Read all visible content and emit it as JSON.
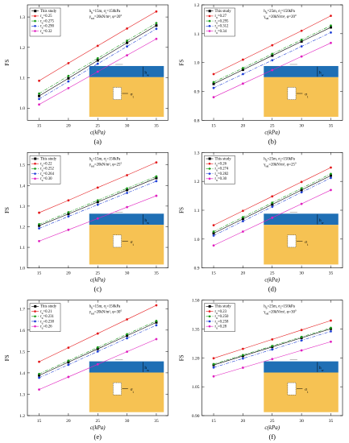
{
  "chart_data": [
    {
      "type": "line",
      "panel_label": "(a)",
      "xlabel": "c(kPa)",
      "ylabel": "FS",
      "x": [
        15,
        20,
        25,
        30,
        35
      ],
      "xlim": [
        13,
        37
      ],
      "xticks": [
        15,
        20,
        25,
        30,
        35
      ],
      "ylim": [
        0.96,
        1.34
      ],
      "yticks": [
        1.0,
        1.1,
        1.2,
        1.3
      ],
      "ytick_labels": [
        "1.0",
        "1.1",
        "1.2",
        "1.3"
      ],
      "note_lines": [
        "h_b=15m, σ_t=150kPa",
        "γ_sat=20kN/m³, φ=20°"
      ],
      "inset": {
        "h_label": "h_w",
        "sigma_label": "σ_t"
      },
      "series": [
        {
          "name": "This study",
          "color": "#000000",
          "style": "solid",
          "marker": "square",
          "values": [
            1.04,
            1.098,
            1.157,
            1.215,
            1.272
          ]
        },
        {
          "name": "r_u=0.25",
          "color": "#e41a1c",
          "style": "solid",
          "marker": "circle",
          "values": [
            1.09,
            1.148,
            1.205,
            1.262,
            1.318
          ]
        },
        {
          "name": "r_u=0.275",
          "color": "#1a9b1a",
          "style": "dashdot",
          "marker": "circle",
          "values": [
            1.048,
            1.106,
            1.164,
            1.222,
            1.28
          ]
        },
        {
          "name": "r_u=0.290",
          "color": "#1f3fd6",
          "style": "dashdot",
          "marker": "circle",
          "values": [
            1.03,
            1.088,
            1.146,
            1.203,
            1.261
          ]
        },
        {
          "name": "r_u=0.32",
          "color": "#e020c0",
          "style": "solid",
          "marker": "circle",
          "values": [
            1.012,
            1.066,
            1.12,
            1.174,
            1.228
          ]
        }
      ]
    },
    {
      "type": "line",
      "panel_label": "(b)",
      "xlabel": "c(kPa)",
      "ylabel": "FS",
      "x": [
        15,
        20,
        25,
        30,
        35
      ],
      "xlim": [
        13,
        37
      ],
      "xticks": [
        15,
        20,
        25,
        30,
        35
      ],
      "ylim": [
        0.8,
        1.2
      ],
      "yticks": [
        0.8,
        0.9,
        1.0,
        1.1,
        1.2
      ],
      "ytick_labels": [
        "0.8",
        "0.9",
        "1.0",
        "1.1",
        "1.2"
      ],
      "note_lines": [
        "h_b=25m, σ_t=150kPa",
        "γ_sat=20kN/m³, φ=20°"
      ],
      "inset": {
        "h_label": "h_w",
        "sigma_label": "σ_t"
      },
      "series": [
        {
          "name": "This study",
          "color": "#000000",
          "style": "solid",
          "marker": "square",
          "values": [
            0.926,
            0.975,
            1.024,
            1.073,
            1.122
          ]
        },
        {
          "name": "r_u=0.27",
          "color": "#e41a1c",
          "style": "solid",
          "marker": "circle",
          "values": [
            0.96,
            1.01,
            1.06,
            1.11,
            1.162
          ]
        },
        {
          "name": "r_u=0.295",
          "color": "#1a9b1a",
          "style": "dashdot",
          "marker": "circle",
          "values": [
            0.932,
            0.981,
            1.03,
            1.079,
            1.128
          ]
        },
        {
          "name": "r_u=0.312",
          "color": "#1f3fd6",
          "style": "dashdot",
          "marker": "circle",
          "values": [
            0.912,
            0.96,
            1.008,
            1.056,
            1.104
          ]
        },
        {
          "name": "r_u=0.34",
          "color": "#e020c0",
          "style": "solid",
          "marker": "circle",
          "values": [
            0.88,
            0.927,
            0.974,
            1.021,
            1.068
          ]
        }
      ]
    },
    {
      "type": "line",
      "panel_label": "(c)",
      "xlabel": "c(kPa)",
      "ylabel": "FS",
      "x": [
        15,
        20,
        25,
        30,
        35
      ],
      "xlim": [
        13,
        37
      ],
      "xticks": [
        15,
        20,
        25,
        30,
        35
      ],
      "ylim": [
        1.0,
        1.56
      ],
      "yticks": [
        1.0,
        1.1,
        1.2,
        1.3,
        1.4,
        1.5
      ],
      "ytick_labels": [
        "1.0",
        "1.1",
        "1.2",
        "1.3",
        "1.4",
        "1.5"
      ],
      "note_lines": [
        "h_b=15m, σ_t=150kPa",
        "γ_sat=20kN/m³, φ=25°"
      ],
      "inset": {
        "h_label": "h_w",
        "sigma_label": "σ_t"
      },
      "series": [
        {
          "name": "This study",
          "color": "#000000",
          "style": "solid",
          "marker": "square",
          "values": [
            1.205,
            1.262,
            1.32,
            1.378,
            1.436
          ]
        },
        {
          "name": "r_u=0.22",
          "color": "#e41a1c",
          "style": "solid",
          "marker": "circle",
          "values": [
            1.268,
            1.328,
            1.39,
            1.45,
            1.512
          ]
        },
        {
          "name": "r_u=0.252",
          "color": "#1a9b1a",
          "style": "dashdot",
          "marker": "circle",
          "values": [
            1.212,
            1.27,
            1.328,
            1.386,
            1.444
          ]
        },
        {
          "name": "r_u=0.264",
          "color": "#1f3fd6",
          "style": "dashdot",
          "marker": "circle",
          "values": [
            1.192,
            1.25,
            1.307,
            1.364,
            1.421
          ]
        },
        {
          "name": "r_u=0.30",
          "color": "#e020c0",
          "style": "solid",
          "marker": "circle",
          "values": [
            1.13,
            1.185,
            1.24,
            1.295,
            1.35
          ]
        }
      ]
    },
    {
      "type": "line",
      "panel_label": "(d)",
      "xlabel": "c(kPa)",
      "ylabel": "FS",
      "x": [
        15,
        20,
        25,
        30,
        35
      ],
      "xlim": [
        13,
        37
      ],
      "xticks": [
        15,
        20,
        25,
        30,
        35
      ],
      "ylim": [
        0.9,
        1.3
      ],
      "yticks": [
        0.9,
        1.0,
        1.1,
        1.2,
        1.3
      ],
      "ytick_labels": [
        "0.9",
        "1.0",
        "1.1",
        "1.2",
        "1.3"
      ],
      "note_lines": [
        "h_b=25m, σ_t=150kPa",
        "γ_sat=20kN/m³, φ=25°"
      ],
      "inset": {
        "h_label": "h_w",
        "sigma_label": "σ_t"
      },
      "series": [
        {
          "name": "This study",
          "color": "#000000",
          "style": "solid",
          "marker": "square",
          "values": [
            1.02,
            1.07,
            1.12,
            1.17,
            1.22
          ]
        },
        {
          "name": "r_u=0.26",
          "color": "#e41a1c",
          "style": "solid",
          "marker": "circle",
          "values": [
            1.048,
            1.098,
            1.148,
            1.198,
            1.248
          ]
        },
        {
          "name": "r_u=0.274",
          "color": "#1a9b1a",
          "style": "dashdot",
          "marker": "circle",
          "values": [
            1.026,
            1.076,
            1.126,
            1.176,
            1.226
          ]
        },
        {
          "name": "r_u=0.282",
          "color": "#1f3fd6",
          "style": "dashdot",
          "marker": "circle",
          "values": [
            1.012,
            1.062,
            1.112,
            1.162,
            1.212
          ]
        },
        {
          "name": "r_u=0.30",
          "color": "#e020c0",
          "style": "solid",
          "marker": "circle",
          "values": [
            0.978,
            1.026,
            1.074,
            1.122,
            1.17
          ]
        }
      ]
    },
    {
      "type": "line",
      "panel_label": "(e)",
      "xlabel": "c(kPa)",
      "ylabel": "FS",
      "x": [
        15,
        20,
        25,
        30,
        35
      ],
      "xlim": [
        13,
        37
      ],
      "xticks": [
        15,
        20,
        25,
        30,
        35
      ],
      "ylim": [
        1.2,
        1.74
      ],
      "yticks": [
        1.2,
        1.3,
        1.4,
        1.5,
        1.6,
        1.7
      ],
      "ytick_labels": [
        "1.2",
        "1.3",
        "1.4",
        "1.5",
        "1.6",
        "1.7"
      ],
      "note_lines": [
        "h_b=15m, σ_t=150kPa",
        "γ_sat=20kN/m³, φ=30°"
      ],
      "inset": {
        "h_label": "h_w",
        "sigma_label": "σ_t"
      },
      "series": [
        {
          "name": "This study",
          "color": "#000000",
          "style": "solid",
          "marker": "square",
          "values": [
            1.388,
            1.45,
            1.512,
            1.574,
            1.636
          ]
        },
        {
          "name": "r_u=0.21",
          "color": "#e41a1c",
          "style": "solid",
          "marker": "circle",
          "values": [
            1.452,
            1.518,
            1.584,
            1.65,
            1.716
          ]
        },
        {
          "name": "r_u=0.231",
          "color": "#1a9b1a",
          "style": "dashdot",
          "marker": "circle",
          "values": [
            1.395,
            1.457,
            1.519,
            1.581,
            1.643
          ]
        },
        {
          "name": "r_u=0.238",
          "color": "#1f3fd6",
          "style": "dashdot",
          "marker": "circle",
          "values": [
            1.377,
            1.438,
            1.5,
            1.562,
            1.623
          ]
        },
        {
          "name": "r_u=0.26",
          "color": "#e020c0",
          "style": "solid",
          "marker": "circle",
          "values": [
            1.322,
            1.381,
            1.44,
            1.499,
            1.558
          ]
        }
      ]
    },
    {
      "type": "line",
      "panel_label": "(f)",
      "xlabel": "c(kPa)",
      "ylabel": "FS",
      "x": [
        15,
        20,
        25,
        30,
        35
      ],
      "xlim": [
        13,
        37
      ],
      "xticks": [
        15,
        20,
        25,
        30,
        35
      ],
      "ylim": [
        0.9,
        1.5
      ],
      "yticks": [
        0.9,
        1.05,
        1.2,
        1.35,
        1.5
      ],
      "ytick_labels": [
        "0.90",
        "1.05",
        "1.20",
        "1.35",
        "1.50"
      ],
      "note_lines": [
        "h_b=25m, σ_t=150kPa",
        "γ_sat=20kN/m³, φ=30°"
      ],
      "inset": {
        "h_label": "h_w",
        "sigma_label": "σ_t"
      },
      "series": [
        {
          "name": "This study",
          "color": "#000000",
          "style": "solid",
          "marker": "square",
          "values": [
            1.163,
            1.21,
            1.257,
            1.304,
            1.351
          ]
        },
        {
          "name": "r_u=0.23",
          "color": "#e41a1c",
          "style": "solid",
          "marker": "circle",
          "values": [
            1.198,
            1.247,
            1.296,
            1.345,
            1.394
          ]
        },
        {
          "name": "r_u=0.250",
          "color": "#1a9b1a",
          "style": "dashdot",
          "marker": "circle",
          "values": [
            1.168,
            1.215,
            1.262,
            1.309,
            1.356
          ]
        },
        {
          "name": "r_u=0.258",
          "color": "#1f3fd6",
          "style": "dashdot",
          "marker": "circle",
          "values": [
            1.15,
            1.197,
            1.244,
            1.291,
            1.338
          ]
        },
        {
          "name": "r_u=0.28",
          "color": "#e020c0",
          "style": "solid",
          "marker": "circle",
          "values": [
            1.104,
            1.149,
            1.194,
            1.239,
            1.284
          ]
        }
      ]
    }
  ]
}
